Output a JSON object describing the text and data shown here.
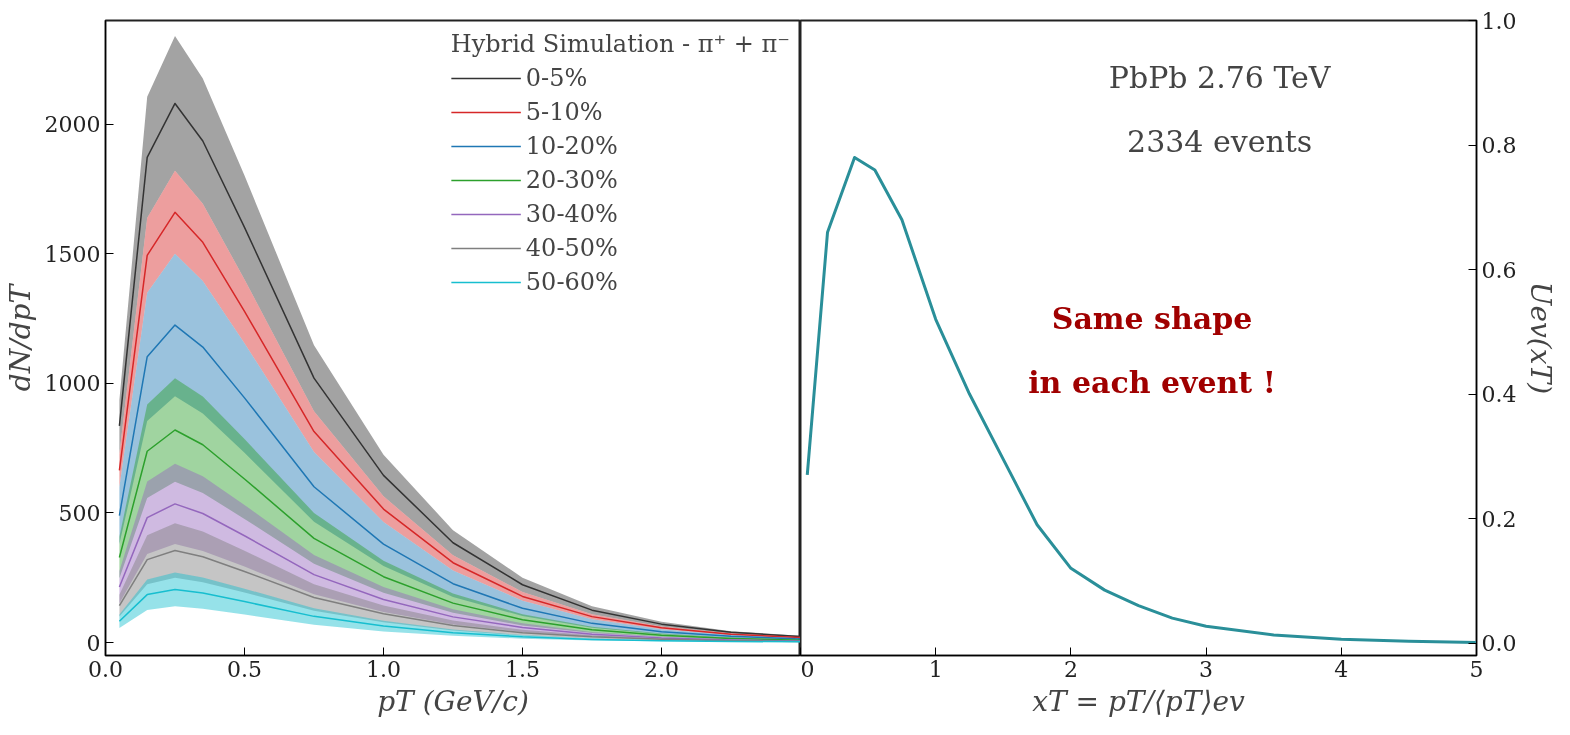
{
  "chart_data": [
    {
      "type": "line",
      "xlabel": "pT (GeV/c)",
      "ylabel": "dN/dpT",
      "legend_title": "Hybrid Simulation - π⁺ + π⁻",
      "legend": "top right",
      "grid": false,
      "x": [
        0.05,
        0.15,
        0.25,
        0.35,
        0.5,
        0.75,
        1.0,
        1.25,
        1.5,
        1.75,
        2.0,
        2.25,
        2.5
      ],
      "xlim": [
        0,
        2.5
      ],
      "xticks": [
        {
          "value": 0,
          "label": "0.0"
        },
        0.5,
        {
          "value": 1,
          "label": "1.0"
        },
        1.5,
        {
          "value": 2,
          "label": "2.0"
        }
      ],
      "ylim": [
        -50,
        2400
      ],
      "yticks": [
        0,
        500,
        1000,
        1500,
        2000
      ],
      "series": [
        {
          "name": "0-5%",
          "color": "#333333",
          "values": [
            836,
            1872,
            2080,
            1935,
            1602,
            1020,
            645,
            385,
            223,
            125,
            71,
            40,
            23
          ],
          "lower": [
            728,
            1638,
            1820,
            1693,
            1401,
            892,
            564,
            337,
            195,
            109,
            62,
            35,
            20
          ],
          "upper": [
            936,
            2106,
            2340,
            2176,
            1802,
            1147,
            725,
            433,
            250,
            140,
            80,
            44,
            26
          ]
        },
        {
          "name": "5-10%",
          "color": "#d62728",
          "values": [
            664,
            1494,
            1660,
            1544,
            1278,
            814,
            515,
            308,
            178,
            100,
            57,
            32,
            19
          ],
          "lower": [
            600,
            1350,
            1500,
            1395,
            1155,
            735,
            465,
            278,
            161,
            90,
            51,
            29,
            17
          ],
          "upper": [
            728,
            1638,
            1820,
            1693,
            1401,
            892,
            564,
            337,
            195,
            109,
            62,
            35,
            20
          ]
        },
        {
          "name": "10-20%",
          "color": "#1f77b4",
          "values": [
            490,
            1103,
            1225,
            1140,
            944,
            601,
            380,
            227,
            132,
            74,
            42,
            24,
            14
          ],
          "lower": [
            380,
            855,
            950,
            884,
            732,
            466,
            295,
            176,
            102,
            57,
            32,
            18,
            10
          ],
          "upper": [
            600,
            1350,
            1500,
            1395,
            1155,
            735,
            465,
            278,
            161,
            90,
            51,
            29,
            17
          ]
        },
        {
          "name": "20-30%",
          "color": "#2ca02c",
          "values": [
            328,
            738,
            820,
            763,
            631,
            402,
            254,
            152,
            88,
            49,
            28,
            16,
            9
          ],
          "lower": [
            248,
            558,
            620,
            577,
            477,
            304,
            192,
            115,
            66,
            37,
            21,
            12,
            7
          ],
          "upper": [
            408,
            918,
            1020,
            949,
            785,
            500,
            316,
            189,
            109,
            61,
            35,
            19,
            11
          ]
        },
        {
          "name": "30-40%",
          "color": "#9467bd",
          "values": [
            214,
            482,
            535,
            498,
            412,
            262,
            166,
            99,
            58,
            32,
            18,
            10,
            6
          ],
          "lower": [
            152,
            342,
            380,
            353,
            293,
            186,
            118,
            70,
            41,
            23,
            13,
            7,
            4
          ],
          "upper": [
            276,
            621,
            690,
            642,
            531,
            338,
            214,
            128,
            74,
            41,
            23,
            13,
            8
          ]
        },
        {
          "name": "40-50%",
          "color": "#7f7f7f",
          "values": [
            142,
            320,
            355,
            331,
            274,
            174,
            111,
            66,
            38,
            22,
            13,
            7,
            4
          ],
          "lower": [
            100,
            225,
            250,
            233,
            193,
            123,
            78,
            46,
            27,
            15,
            9,
            5,
            3
          ],
          "upper": [
            184,
            414,
            460,
            428,
            354,
            225,
            143,
            85,
            49,
            28,
            16,
            9,
            5
          ]
        },
        {
          "name": "50-60%",
          "color": "#17becf",
          "values": [
            82,
            185,
            205,
            191,
            158,
            101,
            64,
            38,
            22,
            12,
            7,
            4,
            3
          ],
          "lower": [
            56,
            126,
            140,
            130,
            108,
            69,
            43,
            26,
            15,
            8,
            5,
            3,
            2
          ],
          "upper": [
            108,
            243,
            270,
            251,
            208,
            132,
            84,
            50,
            29,
            16,
            9,
            5,
            3
          ]
        }
      ]
    },
    {
      "type": "line",
      "xlabel": "xT = pT/⟨pT⟩ev",
      "y2label": "Uev(xT)",
      "grid": false,
      "x": [
        0.05,
        0.2,
        0.4,
        0.55,
        0.75,
        1.0,
        1.25,
        1.5,
        1.75,
        2.0,
        2.25,
        2.5,
        2.75,
        3.0,
        3.5,
        4.0,
        4.5,
        5.0
      ],
      "xlim": [
        0,
        5
      ],
      "xticks": [
        0,
        1,
        2,
        3,
        4,
        5
      ],
      "y2lim": [
        -0.02,
        1.0
      ],
      "y2ticks": [
        {
          "value": 0,
          "label": "0.0"
        },
        0.2,
        0.4,
        0.6,
        0.8,
        {
          "value": 1,
          "label": "1.0"
        }
      ],
      "series": [
        {
          "color": "#2a8f99",
          "axis": "y2",
          "values": [
            0.27,
            0.66,
            0.78,
            0.76,
            0.68,
            0.52,
            0.4,
            0.295,
            0.19,
            0.12,
            0.085,
            0.06,
            0.04,
            0.027,
            0.013,
            0.006,
            0.003,
            0.001
          ]
        }
      ],
      "annotations": [
        "PbPb 2.76 TeV",
        "2334 events",
        "Same shape",
        "in each event !"
      ]
    }
  ]
}
